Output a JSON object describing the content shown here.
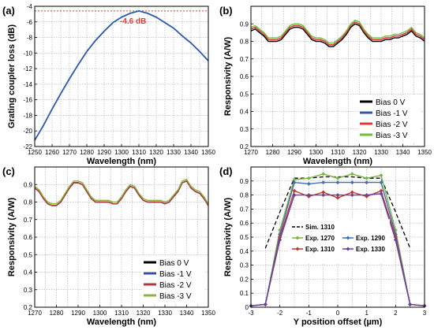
{
  "chart_data": [
    {
      "panel": "(a)",
      "type": "line",
      "xlabel": "Wavelength (nm)",
      "ylabel": "Grating coupler loss (dB)",
      "xlim": [
        1250,
        1350
      ],
      "ylim": [
        -22,
        -4
      ],
      "xticks": [
        1250,
        1260,
        1270,
        1280,
        1290,
        1300,
        1310,
        1320,
        1330,
        1340,
        1350
      ],
      "yticks": [
        -22,
        -20,
        -18,
        -16,
        -14,
        -12,
        -10,
        -8,
        -6,
        -4
      ],
      "grid": true,
      "colors": {
        "line": "#2b58a8",
        "ref": "#e53935"
      },
      "annotation": {
        "text": "-4.6 dB",
        "x": 1310,
        "y": -4.6
      },
      "ref_line": -4.6,
      "series": [
        {
          "x": [
            1250,
            1255,
            1260,
            1265,
            1270,
            1275,
            1280,
            1285,
            1290,
            1295,
            1300,
            1305,
            1310,
            1315,
            1320,
            1325,
            1330,
            1335,
            1340,
            1345,
            1350
          ],
          "values": [
            -21.2,
            -19.3,
            -17.2,
            -15.2,
            -13.3,
            -11.5,
            -9.8,
            -8.4,
            -7.2,
            -6.1,
            -5.4,
            -4.9,
            -4.6,
            -4.9,
            -5.4,
            -6.1,
            -6.8,
            -7.8,
            -8.7,
            -9.8,
            -11
          ]
        }
      ]
    },
    {
      "panel": "(b)",
      "type": "line",
      "xlabel": "Wavelength (nm)",
      "ylabel": "Responsivity (A/W)",
      "xlim": [
        1270,
        1350
      ],
      "ylim": [
        0.2,
        1.0
      ],
      "xticks": [
        1270,
        1280,
        1290,
        1300,
        1310,
        1320,
        1330,
        1340,
        1350
      ],
      "yticks": [
        0.2,
        0.3,
        0.4,
        0.5,
        0.6,
        0.7,
        0.8,
        0.9
      ],
      "grid": true,
      "legend": "bottom-right",
      "x": [
        1270,
        1272,
        1274,
        1276,
        1278,
        1280,
        1282,
        1284,
        1286,
        1288,
        1290,
        1292,
        1294,
        1296,
        1298,
        1300,
        1302,
        1304,
        1306,
        1308,
        1310,
        1312,
        1314,
        1316,
        1318,
        1320,
        1322,
        1324,
        1326,
        1328,
        1330,
        1332,
        1334,
        1336,
        1338,
        1340,
        1342,
        1344,
        1346,
        1348,
        1350
      ],
      "series": [
        {
          "name": "Bias 0 V",
          "color": "#000000",
          "values": [
            0.86,
            0.87,
            0.85,
            0.83,
            0.8,
            0.8,
            0.8,
            0.81,
            0.84,
            0.87,
            0.88,
            0.88,
            0.87,
            0.84,
            0.81,
            0.8,
            0.8,
            0.79,
            0.77,
            0.77,
            0.79,
            0.81,
            0.84,
            0.88,
            0.9,
            0.89,
            0.85,
            0.82,
            0.8,
            0.8,
            0.8,
            0.81,
            0.81,
            0.82,
            0.82,
            0.83,
            0.84,
            0.86,
            0.83,
            0.82,
            0.8
          ]
        },
        {
          "name": "Bias -1 V",
          "color": "#2b58a8",
          "values": [
            0.87,
            0.88,
            0.86,
            0.84,
            0.81,
            0.81,
            0.81,
            0.82,
            0.85,
            0.88,
            0.89,
            0.89,
            0.88,
            0.85,
            0.82,
            0.81,
            0.81,
            0.8,
            0.78,
            0.78,
            0.8,
            0.82,
            0.85,
            0.89,
            0.91,
            0.9,
            0.86,
            0.83,
            0.81,
            0.81,
            0.81,
            0.82,
            0.82,
            0.83,
            0.83,
            0.84,
            0.85,
            0.87,
            0.84,
            0.83,
            0.81
          ]
        },
        {
          "name": "Bias -2 V",
          "color": "#e53935",
          "values": [
            0.87,
            0.88,
            0.86,
            0.84,
            0.81,
            0.81,
            0.81,
            0.82,
            0.85,
            0.88,
            0.89,
            0.89,
            0.88,
            0.85,
            0.82,
            0.81,
            0.81,
            0.8,
            0.78,
            0.78,
            0.8,
            0.82,
            0.85,
            0.89,
            0.91,
            0.9,
            0.86,
            0.83,
            0.81,
            0.81,
            0.81,
            0.82,
            0.82,
            0.83,
            0.83,
            0.84,
            0.85,
            0.87,
            0.84,
            0.83,
            0.81
          ]
        },
        {
          "name": "Bias -3 V",
          "color": "#6cbf3c",
          "values": [
            0.88,
            0.89,
            0.87,
            0.85,
            0.82,
            0.82,
            0.82,
            0.83,
            0.86,
            0.89,
            0.9,
            0.9,
            0.89,
            0.86,
            0.83,
            0.82,
            0.82,
            0.81,
            0.79,
            0.79,
            0.81,
            0.83,
            0.86,
            0.9,
            0.92,
            0.91,
            0.87,
            0.84,
            0.82,
            0.82,
            0.82,
            0.83,
            0.83,
            0.84,
            0.84,
            0.85,
            0.86,
            0.88,
            0.85,
            0.84,
            0.82
          ]
        }
      ]
    },
    {
      "panel": "(c)",
      "type": "line",
      "xlabel": "Wavelength (nm)",
      "ylabel": "Responsivity (A/W)",
      "xlim": [
        1270,
        1350
      ],
      "ylim": [
        0.2,
        1.0
      ],
      "xticks": [
        1270,
        1280,
        1290,
        1300,
        1310,
        1320,
        1330,
        1340,
        1350
      ],
      "yticks": [
        0.2,
        0.3,
        0.4,
        0.5,
        0.6,
        0.7,
        0.8,
        0.9
      ],
      "grid": true,
      "legend": "bottom-right",
      "x": [
        1270,
        1272,
        1274,
        1276,
        1278,
        1280,
        1282,
        1284,
        1286,
        1288,
        1290,
        1292,
        1294,
        1296,
        1298,
        1300,
        1302,
        1304,
        1306,
        1308,
        1310,
        1312,
        1314,
        1316,
        1318,
        1320,
        1322,
        1324,
        1326,
        1328,
        1330,
        1332,
        1334,
        1336,
        1338,
        1340,
        1342,
        1344,
        1346,
        1348,
        1350
      ],
      "series": [
        {
          "name": "Bias 0 V",
          "color": "#000000",
          "values": [
            0.88,
            0.86,
            0.82,
            0.79,
            0.78,
            0.78,
            0.8,
            0.84,
            0.88,
            0.91,
            0.91,
            0.9,
            0.86,
            0.82,
            0.8,
            0.8,
            0.8,
            0.8,
            0.79,
            0.79,
            0.82,
            0.86,
            0.89,
            0.88,
            0.84,
            0.81,
            0.8,
            0.8,
            0.8,
            0.8,
            0.79,
            0.8,
            0.83,
            0.86,
            0.91,
            0.92,
            0.88,
            0.86,
            0.85,
            0.82,
            0.78
          ]
        },
        {
          "name": "Bias -1 V",
          "color": "#3a4fa0",
          "values": [
            0.88,
            0.86,
            0.82,
            0.79,
            0.78,
            0.78,
            0.8,
            0.84,
            0.88,
            0.91,
            0.91,
            0.9,
            0.86,
            0.82,
            0.8,
            0.8,
            0.8,
            0.8,
            0.79,
            0.79,
            0.82,
            0.86,
            0.89,
            0.88,
            0.84,
            0.81,
            0.8,
            0.8,
            0.8,
            0.8,
            0.79,
            0.8,
            0.83,
            0.86,
            0.91,
            0.92,
            0.88,
            0.86,
            0.85,
            0.82,
            0.78
          ]
        },
        {
          "name": "Bias -2 V",
          "color": "#b03a3a",
          "values": [
            0.88,
            0.86,
            0.82,
            0.79,
            0.78,
            0.78,
            0.8,
            0.84,
            0.88,
            0.91,
            0.91,
            0.9,
            0.86,
            0.82,
            0.8,
            0.8,
            0.8,
            0.8,
            0.79,
            0.79,
            0.82,
            0.86,
            0.89,
            0.88,
            0.84,
            0.81,
            0.8,
            0.8,
            0.8,
            0.8,
            0.79,
            0.8,
            0.83,
            0.86,
            0.91,
            0.92,
            0.88,
            0.86,
            0.85,
            0.82,
            0.78
          ]
        },
        {
          "name": "Bias -3 V",
          "color": "#8ab43a",
          "values": [
            0.89,
            0.87,
            0.83,
            0.8,
            0.79,
            0.79,
            0.81,
            0.85,
            0.89,
            0.92,
            0.92,
            0.91,
            0.87,
            0.83,
            0.81,
            0.81,
            0.81,
            0.81,
            0.8,
            0.8,
            0.83,
            0.87,
            0.9,
            0.89,
            0.85,
            0.82,
            0.81,
            0.81,
            0.81,
            0.81,
            0.8,
            0.81,
            0.84,
            0.87,
            0.92,
            0.93,
            0.89,
            0.87,
            0.86,
            0.83,
            0.79
          ]
        }
      ]
    },
    {
      "panel": "(d)",
      "type": "line",
      "xlabel": "Y position offset (µm)",
      "ylabel": "Responsivity (A/W)",
      "xlim": [
        -3,
        3
      ],
      "ylim": [
        0,
        1.0
      ],
      "xticks": [
        -3,
        -2,
        -1,
        0,
        1,
        2,
        3
      ],
      "yticks": [
        0,
        0.1,
        0.2,
        0.3,
        0.4,
        0.5,
        0.6,
        0.7,
        0.8,
        0.9
      ],
      "grid": true,
      "legend": "center",
      "series": [
        {
          "name": "Sim. 1310",
          "color": "#000000",
          "dashed": true,
          "marker": "none",
          "x": [
            -2.5,
            -2,
            -1.5,
            -1,
            -0.5,
            0,
            0.5,
            1,
            1.5,
            2,
            2.5
          ],
          "values": [
            0.42,
            0.68,
            0.92,
            0.92,
            0.93,
            0.93,
            0.93,
            0.92,
            0.92,
            0.68,
            0.42
          ]
        },
        {
          "name": "Exp. 1270",
          "color": "#7cb342",
          "marker": "diamond",
          "x": [
            -3,
            -2.5,
            -2,
            -1.5,
            -1,
            -0.5,
            0,
            0.5,
            1,
            1.5,
            2,
            2.5,
            3
          ],
          "values": [
            0.01,
            0.02,
            0.55,
            0.91,
            0.92,
            0.95,
            0.92,
            0.95,
            0.92,
            0.94,
            0.55,
            0.02,
            0.01
          ]
        },
        {
          "name": "Exp. 1290",
          "color": "#3f6fb5",
          "marker": "diamond",
          "x": [
            -3,
            -2.5,
            -2,
            -1.5,
            -1,
            -0.5,
            0,
            0.5,
            1,
            1.5,
            2,
            2.5,
            3
          ],
          "values": [
            0.01,
            0.02,
            0.52,
            0.89,
            0.88,
            0.89,
            0.89,
            0.89,
            0.89,
            0.89,
            0.52,
            0.02,
            0.01
          ]
        },
        {
          "name": "Exp. 1310",
          "color": "#c0392b",
          "marker": "diamond",
          "x": [
            -3,
            -2.5,
            -2,
            -1.5,
            -1,
            -0.5,
            0,
            0.5,
            1,
            1.5,
            2,
            2.5,
            3
          ],
          "values": [
            0.01,
            0.02,
            0.5,
            0.83,
            0.79,
            0.82,
            0.78,
            0.82,
            0.79,
            0.83,
            0.5,
            0.02,
            0.01
          ]
        },
        {
          "name": "Exp. 1330",
          "color": "#6a3fa0",
          "marker": "diamond",
          "x": [
            -3,
            -2.5,
            -2,
            -1.5,
            -1,
            -0.5,
            0,
            0.5,
            1,
            1.5,
            2,
            2.5,
            3
          ],
          "values": [
            0.01,
            0.02,
            0.48,
            0.8,
            0.8,
            0.8,
            0.8,
            0.8,
            0.8,
            0.81,
            0.48,
            0.02,
            0.01
          ]
        }
      ]
    }
  ]
}
